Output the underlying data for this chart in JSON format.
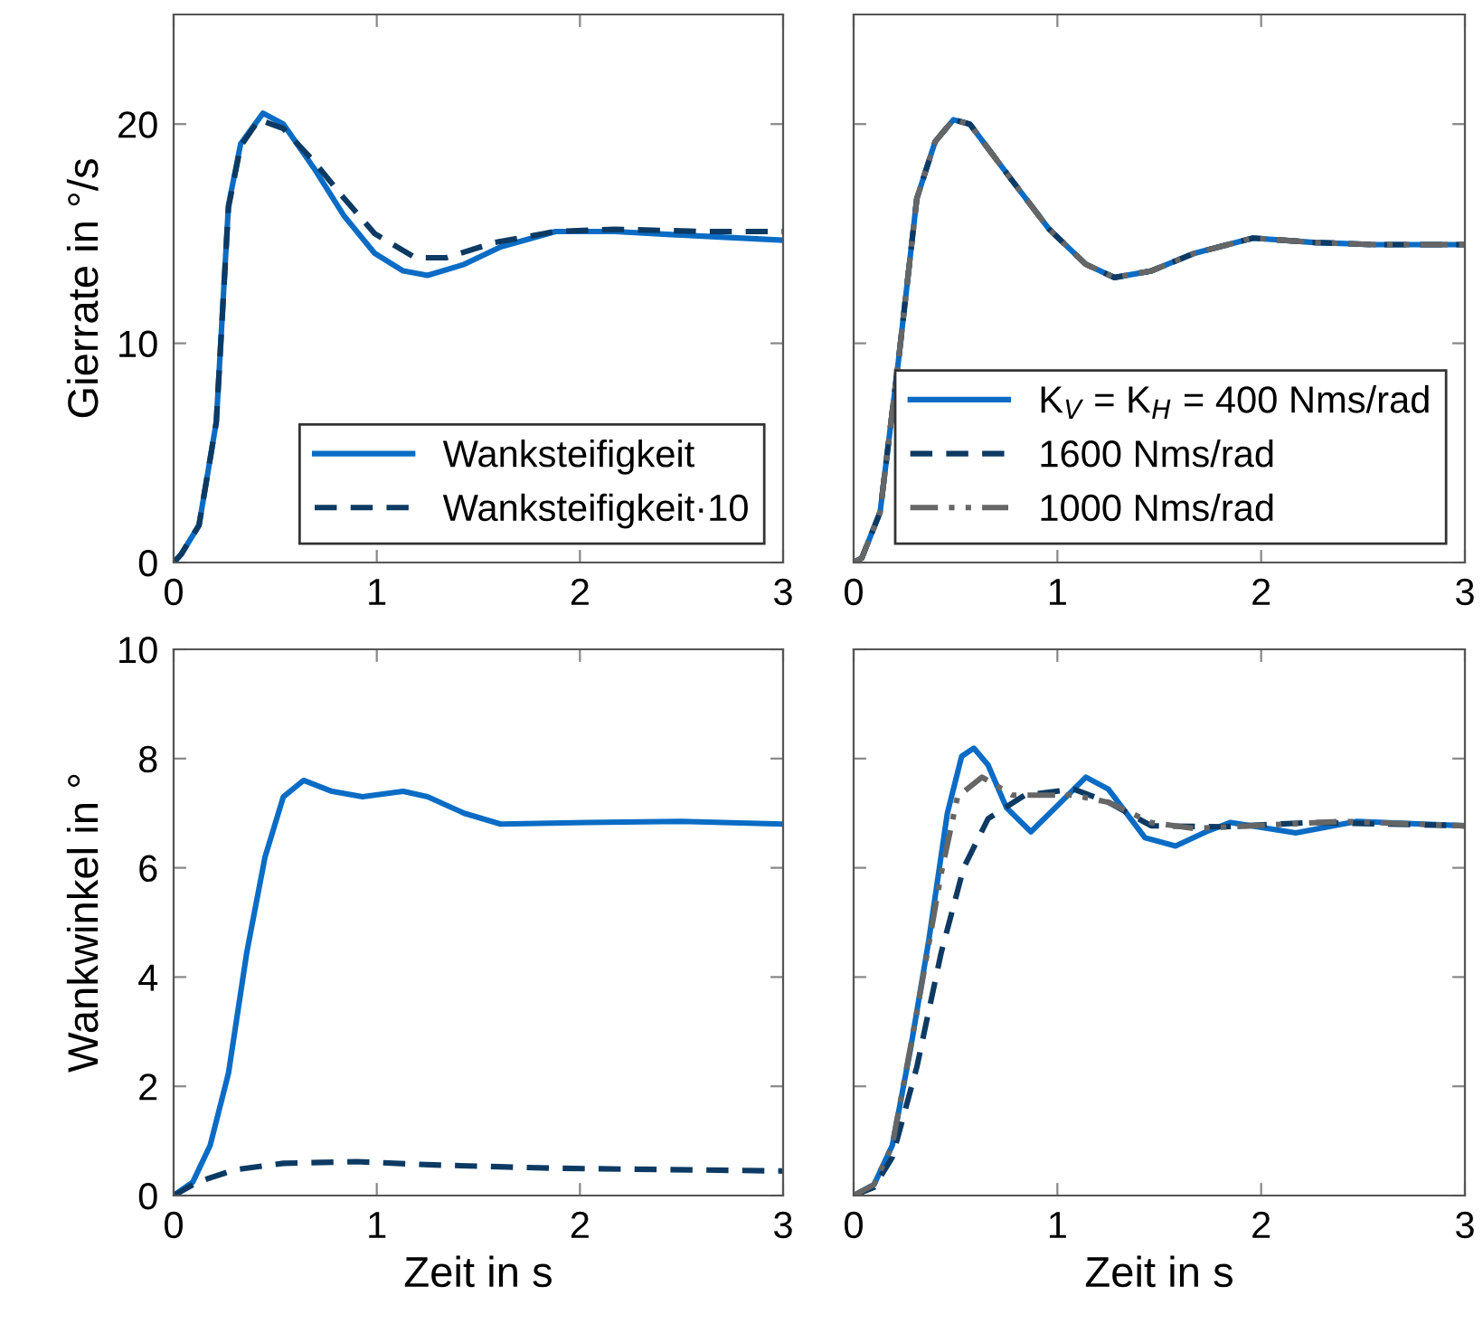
{
  "chart_data": [
    {
      "type": "line",
      "ylabel": "Gierrate in °/s",
      "xlim": [
        0,
        3
      ],
      "xticks": [
        0,
        1,
        2,
        3
      ],
      "ylim": [
        0,
        25
      ],
      "yticks": [
        0,
        10,
        20
      ],
      "grid": false,
      "legend": "bottom right",
      "marker": "none",
      "series": [
        {
          "name": "Wanksteifigkeit",
          "color": "#0a6cc4",
          "line_style": "solid",
          "x": [
            0,
            0.036,
            0.125,
            0.21,
            0.27,
            0.33,
            0.44,
            0.54,
            0.69,
            0.84,
            0.99,
            1.13,
            1.25,
            1.43,
            1.61,
            1.88,
            2.17,
            2.47,
            3
          ],
          "values": [
            0,
            0.36,
            1.7,
            6.4,
            16.3,
            19.1,
            20.5,
            20.0,
            18.0,
            15.8,
            14.1,
            13.3,
            13.1,
            13.6,
            14.4,
            15.1,
            15.1,
            14.95,
            14.7
          ]
        },
        {
          "name": "Wanksteifigkeit·10",
          "color": "#0c3a63",
          "line_style": "dashed",
          "x": [
            0,
            0.036,
            0.125,
            0.21,
            0.27,
            0.33,
            0.42,
            0.54,
            0.69,
            0.84,
            0.99,
            1.19,
            1.34,
            1.58,
            1.88,
            2.17,
            2.62,
            3
          ],
          "values": [
            0,
            0.36,
            1.7,
            6.4,
            16.2,
            19.0,
            20.2,
            19.8,
            18.3,
            16.6,
            15.0,
            13.9,
            13.9,
            14.6,
            15.1,
            15.2,
            15.1,
            15.1
          ]
        }
      ]
    },
    {
      "type": "line",
      "xlim": [
        0,
        3
      ],
      "xticks": [
        0,
        1,
        2,
        3
      ],
      "ylim": [
        0,
        25
      ],
      "yticks": [
        0,
        10,
        20
      ],
      "tick_labels": "x",
      "grid": false,
      "legend": "bottom right",
      "marker": "none",
      "series": [
        {
          "name": "K$_{V}$ = K$_{H}$ = 400 Nms/rad",
          "color": "#0a6cc4",
          "line_style": "solid",
          "x": [
            0,
            0.04,
            0.13,
            0.22,
            0.31,
            0.4,
            0.49,
            0.57,
            0.78,
            0.96,
            1.14,
            1.28,
            1.46,
            1.67,
            1.96,
            2.26,
            2.56,
            3
          ],
          "values": [
            0,
            0.2,
            2.3,
            9.2,
            16.6,
            19.2,
            20.2,
            20.0,
            17.4,
            15.2,
            13.6,
            13.0,
            13.3,
            14.1,
            14.8,
            14.6,
            14.5,
            14.5
          ]
        },
        {
          "name": "1600 Nms/rad",
          "color": "#0c3a63",
          "line_style": "dashed",
          "x": [
            0,
            0.04,
            0.13,
            0.22,
            0.31,
            0.4,
            0.49,
            0.57,
            0.78,
            0.96,
            1.14,
            1.28,
            1.46,
            1.67,
            1.96,
            2.26,
            2.56,
            3
          ],
          "values": [
            0,
            0.2,
            2.3,
            9.2,
            16.6,
            19.2,
            20.2,
            20.0,
            17.4,
            15.2,
            13.6,
            13.0,
            13.3,
            14.1,
            14.8,
            14.6,
            14.5,
            14.5
          ]
        },
        {
          "name": "1000 Nms/rad",
          "color": "#666666",
          "line_style": "dashdot",
          "x": [
            0,
            0.04,
            0.13,
            0.22,
            0.31,
            0.4,
            0.49,
            0.57,
            0.78,
            0.96,
            1.14,
            1.28,
            1.46,
            1.67,
            1.96,
            2.26,
            2.56,
            3
          ],
          "values": [
            0,
            0.2,
            2.3,
            9.2,
            16.6,
            19.2,
            20.2,
            20.0,
            17.4,
            15.2,
            13.6,
            13.0,
            13.3,
            14.1,
            14.8,
            14.6,
            14.5,
            14.5
          ]
        }
      ]
    },
    {
      "type": "line",
      "xlabel": "Zeit in s",
      "ylabel": "Wankwinkel in °",
      "xlim": [
        0,
        3
      ],
      "xticks": [
        0,
        1,
        2,
        3
      ],
      "ylim": [
        0,
        10
      ],
      "yticks": [
        0,
        2,
        4,
        6,
        8,
        10
      ],
      "grid": false,
      "marker": "none",
      "series": [
        {
          "color": "#0a6cc4",
          "line_style": "solid",
          "x": [
            0,
            0.095,
            0.18,
            0.27,
            0.36,
            0.45,
            0.54,
            0.64,
            0.78,
            0.93,
            1.13,
            1.25,
            1.43,
            1.61,
            2.03,
            2.5,
            3
          ],
          "values": [
            0,
            0.25,
            0.92,
            2.24,
            4.45,
            6.2,
            7.3,
            7.6,
            7.4,
            7.3,
            7.4,
            7.3,
            7.0,
            6.8,
            6.83,
            6.85,
            6.8
          ]
        },
        {
          "color": "#0c3a63",
          "line_style": "dashed",
          "x": [
            0,
            0.12,
            0.3,
            0.54,
            0.9,
            1.28,
            1.87,
            3
          ],
          "values": [
            0,
            0.25,
            0.47,
            0.59,
            0.62,
            0.56,
            0.5,
            0.45
          ]
        }
      ]
    },
    {
      "type": "line",
      "xlabel": "Zeit in s",
      "xlim": [
        0,
        3
      ],
      "xticks": [
        0,
        1,
        2,
        3
      ],
      "ylim": [
        0,
        10
      ],
      "yticks": [
        0,
        2,
        4,
        6,
        8,
        10
      ],
      "tick_labels": "x",
      "grid": false,
      "marker": "none",
      "series": [
        {
          "color": "#0a6cc4",
          "line_style": "solid",
          "x": [
            0,
            0.1,
            0.19,
            0.28,
            0.37,
            0.46,
            0.53,
            0.59,
            0.66,
            0.75,
            0.87,
            0.99,
            1.14,
            1.25,
            1.43,
            1.58,
            1.73,
            1.85,
            2.17,
            2.47,
            3
          ],
          "values": [
            0,
            0.2,
            0.92,
            2.7,
            4.7,
            7.0,
            8.04,
            8.19,
            7.88,
            7.1,
            6.66,
            7.1,
            7.66,
            7.44,
            6.55,
            6.4,
            6.66,
            6.83,
            6.64,
            6.85,
            6.77
          ]
        },
        {
          "color": "#0c3a63",
          "line_style": "dashed",
          "x": [
            0,
            0.1,
            0.19,
            0.31,
            0.43,
            0.54,
            0.66,
            0.84,
            1.08,
            1.25,
            1.46,
            1.81,
            2.25,
            3
          ],
          "values": [
            0,
            0.15,
            0.7,
            2.35,
            4.45,
            6.0,
            6.9,
            7.33,
            7.44,
            7.2,
            6.77,
            6.75,
            6.83,
            6.77
          ]
        },
        {
          "color": "#666666",
          "line_style": "dashdot",
          "x": [
            0,
            0.1,
            0.19,
            0.31,
            0.43,
            0.51,
            0.63,
            0.78,
            1.08,
            1.25,
            1.46,
            1.67,
            1.96,
            2.4,
            3
          ],
          "values": [
            0,
            0.2,
            0.92,
            3.35,
            5.9,
            7.3,
            7.66,
            7.33,
            7.33,
            7.2,
            6.83,
            6.72,
            6.77,
            6.85,
            6.77
          ]
        }
      ]
    }
  ]
}
